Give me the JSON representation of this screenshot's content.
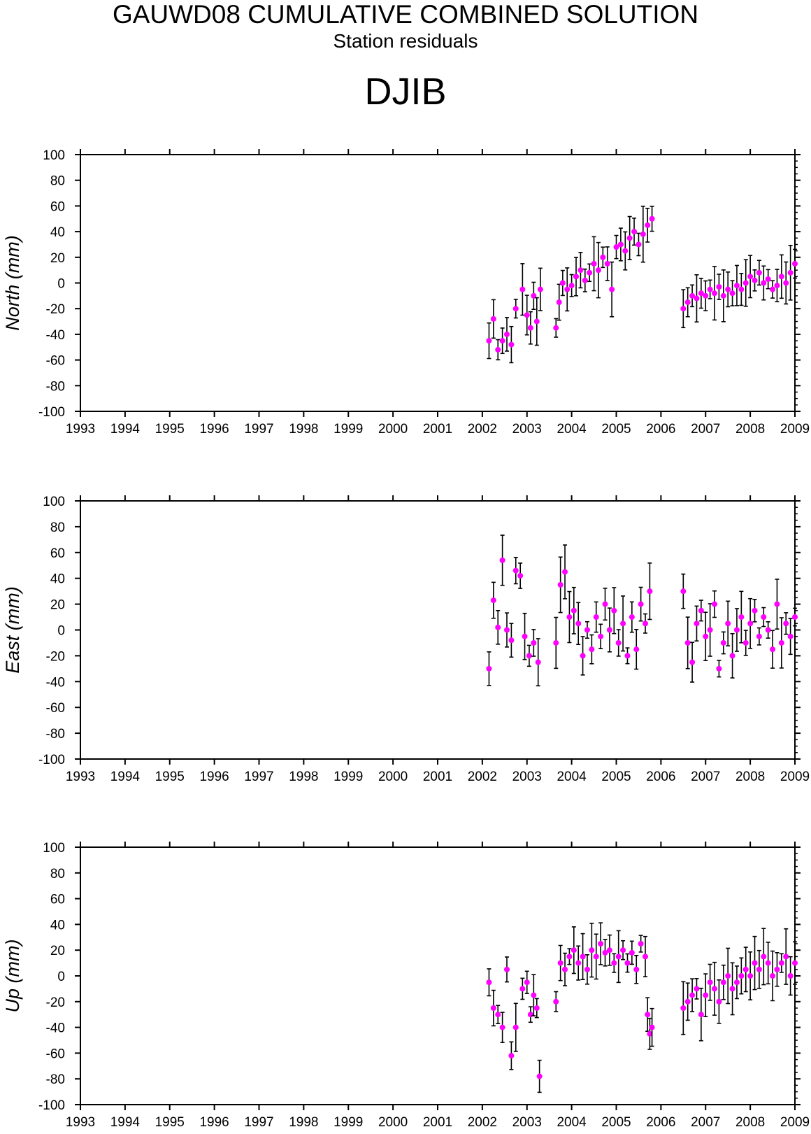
{
  "title": "GAUWD08 CUMULATIVE COMBINED SOLUTION",
  "subtitle": "Station residuals",
  "station": "DJIB",
  "colors": {
    "point": "#ff00ff",
    "errorbar": "#000000",
    "axis": "#000000"
  },
  "chart_data": [
    {
      "type": "scatter",
      "ylabel": "North (mm)",
      "ylim": [
        -100,
        100
      ],
      "xlim": [
        1993,
        2009
      ],
      "x_ticks": [
        "1993",
        "1994",
        "1995",
        "1996",
        "1997",
        "1998",
        "1999",
        "2000",
        "2001",
        "2002",
        "2003",
        "2004",
        "2005",
        "2006",
        "2007",
        "2008",
        "2009"
      ],
      "y_ticks": [
        "100",
        "80",
        "60",
        "40",
        "20",
        "0",
        "-20",
        "-40",
        "-60",
        "-80",
        "-100"
      ],
      "grid": false,
      "error_bars": true,
      "series": [
        {
          "x": [
            2002.15,
            2002.25,
            2002.35,
            2002.45,
            2002.55,
            2002.65,
            2002.75,
            2002.9,
            2003.0,
            2003.08,
            2003.15,
            2003.22,
            2003.3,
            2003.65,
            2003.72,
            2003.8,
            2003.9,
            2004.0,
            2004.1,
            2004.2,
            2004.3,
            2004.4,
            2004.5,
            2004.6,
            2004.7,
            2004.8,
            2004.9,
            2005.0,
            2005.1,
            2005.2,
            2005.3,
            2005.4,
            2005.5,
            2005.6,
            2005.7,
            2005.8,
            2006.5,
            2006.6,
            2006.7,
            2006.8,
            2006.9,
            2007.0,
            2007.1,
            2007.2,
            2007.3,
            2007.4,
            2007.5,
            2007.6,
            2007.7,
            2007.8,
            2007.9,
            2008.0,
            2008.1,
            2008.2,
            2008.3,
            2008.4,
            2008.5,
            2008.6,
            2008.7,
            2008.8,
            2008.9,
            2009.0
          ],
          "y": [
            -45,
            -28,
            -52,
            -45,
            -40,
            -48,
            -20,
            -5,
            -25,
            -35,
            -10,
            -30,
            -5,
            -35,
            -15,
            0,
            -5,
            -2,
            5,
            10,
            2,
            8,
            15,
            10,
            20,
            15,
            -5,
            28,
            30,
            25,
            35,
            40,
            30,
            38,
            45,
            50,
            -20,
            -15,
            -10,
            -12,
            -8,
            -10,
            -5,
            -8,
            -3,
            -10,
            -5,
            -8,
            -2,
            -5,
            0,
            5,
            2,
            8,
            0,
            3,
            -5,
            -2,
            5,
            0,
            8,
            15
          ]
        }
      ]
    },
    {
      "type": "scatter",
      "ylabel": "East (mm)",
      "ylim": [
        -100,
        100
      ],
      "xlim": [
        1993,
        2009
      ],
      "x_ticks": [
        "1993",
        "1994",
        "1995",
        "1996",
        "1997",
        "1998",
        "1999",
        "2000",
        "2001",
        "2002",
        "2003",
        "2004",
        "2005",
        "2006",
        "2007",
        "2008",
        "2009"
      ],
      "y_ticks": [
        "100",
        "80",
        "60",
        "40",
        "20",
        "0",
        "-20",
        "-40",
        "-60",
        "-80",
        "-100"
      ],
      "grid": false,
      "error_bars": true,
      "series": [
        {
          "x": [
            2002.15,
            2002.25,
            2002.35,
            2002.45,
            2002.55,
            2002.65,
            2002.75,
            2002.85,
            2002.95,
            2003.05,
            2003.15,
            2003.25,
            2003.65,
            2003.75,
            2003.85,
            2003.95,
            2004.05,
            2004.15,
            2004.25,
            2004.35,
            2004.45,
            2004.55,
            2004.65,
            2004.75,
            2004.85,
            2004.95,
            2005.05,
            2005.15,
            2005.25,
            2005.35,
            2005.45,
            2005.55,
            2005.65,
            2005.75,
            2006.5,
            2006.6,
            2006.7,
            2006.8,
            2006.9,
            2007.0,
            2007.1,
            2007.2,
            2007.3,
            2007.4,
            2007.5,
            2007.6,
            2007.7,
            2007.8,
            2007.9,
            2008.0,
            2008.1,
            2008.2,
            2008.3,
            2008.4,
            2008.5,
            2008.6,
            2008.7,
            2008.8,
            2008.9,
            2009.0
          ],
          "y": [
            -30,
            23,
            2,
            54,
            0,
            -8,
            46,
            42,
            -5,
            -20,
            -10,
            -25,
            -10,
            35,
            45,
            10,
            15,
            5,
            -20,
            0,
            -15,
            10,
            -5,
            20,
            0,
            15,
            -10,
            5,
            -20,
            10,
            -15,
            20,
            5,
            30,
            30,
            -10,
            -25,
            5,
            15,
            -5,
            0,
            20,
            -30,
            -10,
            5,
            -20,
            0,
            10,
            -10,
            5,
            15,
            -5,
            10,
            0,
            -15,
            20,
            -10,
            5,
            -5,
            10
          ]
        }
      ]
    },
    {
      "type": "scatter",
      "ylabel": "Up (mm)",
      "ylim": [
        -100,
        100
      ],
      "xlim": [
        1993,
        2009
      ],
      "x_ticks": [
        "1993",
        "1994",
        "1995",
        "1996",
        "1997",
        "1998",
        "1999",
        "2000",
        "2001",
        "2002",
        "2003",
        "2004",
        "2005",
        "2006",
        "2007",
        "2008",
        "2009"
      ],
      "y_ticks": [
        "100",
        "80",
        "60",
        "40",
        "20",
        "0",
        "-20",
        "-40",
        "-60",
        "-80",
        "-100"
      ],
      "grid": false,
      "error_bars": true,
      "series": [
        {
          "x": [
            2002.15,
            2002.25,
            2002.35,
            2002.45,
            2002.55,
            2002.65,
            2002.75,
            2002.9,
            2003.0,
            2003.08,
            2003.15,
            2003.22,
            2003.28,
            2003.65,
            2003.75,
            2003.85,
            2003.95,
            2004.05,
            2004.15,
            2004.25,
            2004.35,
            2004.45,
            2004.55,
            2004.65,
            2004.75,
            2004.85,
            2004.95,
            2005.05,
            2005.15,
            2005.25,
            2005.35,
            2005.45,
            2005.55,
            2005.65,
            2005.7,
            2005.75,
            2005.8,
            2006.5,
            2006.6,
            2006.7,
            2006.8,
            2006.9,
            2007.0,
            2007.1,
            2007.2,
            2007.3,
            2007.4,
            2007.5,
            2007.6,
            2007.7,
            2007.8,
            2007.9,
            2008.0,
            2008.1,
            2008.2,
            2008.3,
            2008.4,
            2008.5,
            2008.6,
            2008.7,
            2008.8,
            2008.9,
            2009.0
          ],
          "y": [
            -5,
            -25,
            -30,
            -40,
            5,
            -62,
            -40,
            -10,
            -5,
            -30,
            -15,
            -25,
            -78,
            -20,
            10,
            5,
            15,
            20,
            10,
            15,
            5,
            20,
            15,
            25,
            18,
            20,
            10,
            15,
            20,
            10,
            18,
            5,
            25,
            15,
            -30,
            -45,
            -40,
            -25,
            -20,
            -15,
            -10,
            -30,
            -15,
            -5,
            -10,
            -20,
            -5,
            0,
            -10,
            -5,
            0,
            5,
            0,
            10,
            5,
            15,
            10,
            0,
            5,
            10,
            15,
            0,
            10
          ]
        }
      ]
    }
  ]
}
